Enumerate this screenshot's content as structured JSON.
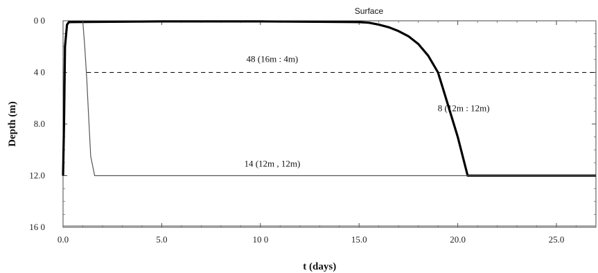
{
  "chart_data": {
    "type": "line",
    "title": "Surface",
    "xlabel": "t  (days)",
    "ylabel": "Depth  (m)",
    "xlim": [
      0,
      27
    ],
    "ylim": [
      16,
      0
    ],
    "y_inverted": true,
    "grid": false,
    "x_ticks": [
      0,
      5,
      10,
      15,
      20,
      25
    ],
    "x_tick_labels": [
      "0.0",
      "5.0",
      "10 0",
      "15.0",
      "20.0",
      "25.0"
    ],
    "y_ticks": [
      0,
      4,
      8,
      12,
      16
    ],
    "y_tick_labels": [
      "0 0",
      "4 0",
      "8.0",
      "12.0",
      "16 0"
    ],
    "series": [
      {
        "color": "#000000",
        "style": "thick",
        "x": [
          0.0,
          0.05,
          0.1,
          0.2,
          0.3,
          5,
          10,
          15,
          15.5,
          16,
          16.5,
          17,
          17.5,
          18,
          18.5,
          19,
          19.3,
          20,
          20.5,
          21,
          25,
          27
        ],
        "y": [
          12,
          8,
          2,
          0.3,
          0.1,
          0.05,
          0.05,
          0.1,
          0.15,
          0.3,
          0.5,
          0.8,
          1.2,
          1.8,
          2.7,
          4.0,
          5.5,
          9.0,
          12,
          12,
          12,
          12
        ]
      },
      {
        "color": "#555555",
        "style": "thin",
        "x": [
          1.0,
          1.1,
          1.2,
          1.3,
          1.4,
          1.6,
          2.0,
          5,
          10,
          15,
          20,
          25,
          27
        ],
        "y": [
          0.05,
          2.0,
          4.5,
          7.5,
          10.5,
          12,
          12,
          12,
          12,
          12,
          12,
          12,
          12
        ]
      },
      {
        "color": "#000000",
        "style": "dashed",
        "x": [
          1.2,
          27
        ],
        "y": [
          4,
          4
        ]
      },
      {
        "color": "#777777",
        "style": "thin",
        "x": [
          0,
          27
        ],
        "y": [
          15.9,
          15.9
        ]
      }
    ],
    "annotations": [
      {
        "text": "48 (16m : 4m)",
        "x": 10.6,
        "y": 3.2
      },
      {
        "text": "8 (12m : 12m)",
        "x": 20.3,
        "y": 7.0
      },
      {
        "text": "14 (12m , 12m)",
        "x": 10.6,
        "y": 11.3
      }
    ]
  }
}
